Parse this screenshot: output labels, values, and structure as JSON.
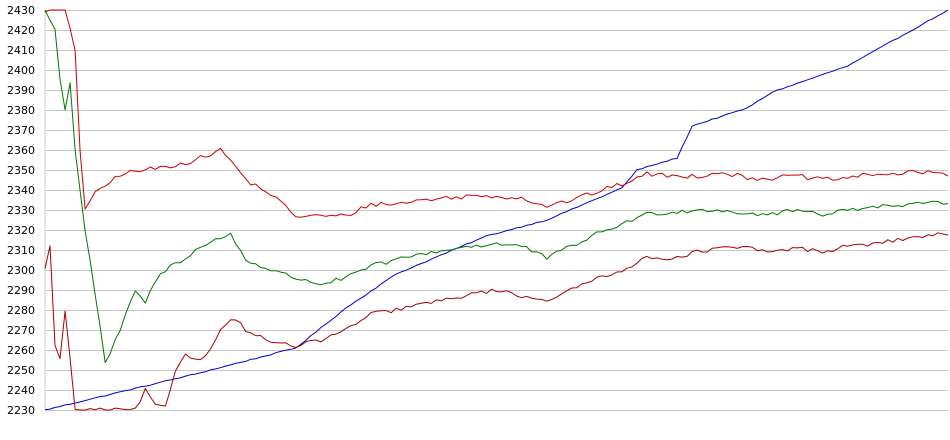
{
  "chart_data": {
    "type": "line",
    "title": "",
    "xlabel": "",
    "ylabel": "",
    "ylim": [
      2230,
      2430
    ],
    "yticks": [
      2230,
      2240,
      2250,
      2260,
      2270,
      2280,
      2290,
      2300,
      2310,
      2320,
      2330,
      2340,
      2350,
      2360,
      2370,
      2380,
      2390,
      2400,
      2410,
      2420,
      2430
    ],
    "grid": true,
    "legend": "none",
    "x_points": 181,
    "series": [
      {
        "color": "#0000cc",
        "keyframes": [
          [
            0,
            2230
          ],
          [
            10,
            2236
          ],
          [
            30,
            2248
          ],
          [
            50,
            2261
          ],
          [
            60,
            2281
          ],
          [
            70,
            2298
          ],
          [
            88,
            2317
          ],
          [
            100,
            2325
          ],
          [
            115,
            2341
          ],
          [
            118,
            2350
          ],
          [
            126,
            2356
          ],
          [
            129,
            2372
          ],
          [
            140,
            2381
          ],
          [
            145,
            2389
          ],
          [
            160,
            2402
          ],
          [
            180,
            2430
          ]
        ],
        "noise": 0.25
      },
      {
        "color": "#cc0000",
        "keyframes": [
          [
            0,
            2430
          ],
          [
            4,
            2430
          ],
          [
            6,
            2410
          ],
          [
            7,
            2360
          ],
          [
            8,
            2331
          ],
          [
            10,
            2338
          ],
          [
            15,
            2348
          ],
          [
            20,
            2350
          ],
          [
            25,
            2352
          ],
          [
            30,
            2355
          ],
          [
            35,
            2360
          ],
          [
            38,
            2352
          ],
          [
            40,
            2345
          ],
          [
            45,
            2338
          ],
          [
            50,
            2327
          ],
          [
            55,
            2327
          ],
          [
            60,
            2327
          ],
          [
            65,
            2333
          ],
          [
            70,
            2333
          ],
          [
            75,
            2335
          ],
          [
            80,
            2336
          ],
          [
            85,
            2337
          ],
          [
            90,
            2337
          ],
          [
            95,
            2336
          ],
          [
            100,
            2332
          ],
          [
            105,
            2335
          ],
          [
            110,
            2339
          ],
          [
            115,
            2343
          ],
          [
            120,
            2348
          ],
          [
            125,
            2347
          ],
          [
            130,
            2347
          ],
          [
            135,
            2349
          ],
          [
            140,
            2346
          ],
          [
            145,
            2346
          ],
          [
            150,
            2347
          ],
          [
            155,
            2345
          ],
          [
            160,
            2346
          ],
          [
            165,
            2348
          ],
          [
            170,
            2348
          ],
          [
            175,
            2349
          ],
          [
            180,
            2348
          ]
        ],
        "noise": 1.2
      },
      {
        "color": "#007700",
        "keyframes": [
          [
            0,
            2430
          ],
          [
            2,
            2420
          ],
          [
            3,
            2395
          ],
          [
            4,
            2381
          ],
          [
            5,
            2394
          ],
          [
            6,
            2360
          ],
          [
            8,
            2320
          ],
          [
            10,
            2288
          ],
          [
            12,
            2253
          ],
          [
            15,
            2270
          ],
          [
            18,
            2290
          ],
          [
            20,
            2283
          ],
          [
            22,
            2295
          ],
          [
            25,
            2302
          ],
          [
            28,
            2306
          ],
          [
            30,
            2310
          ],
          [
            34,
            2315
          ],
          [
            37,
            2318
          ],
          [
            40,
            2305
          ],
          [
            45,
            2300
          ],
          [
            50,
            2296
          ],
          [
            55,
            2293
          ],
          [
            60,
            2296
          ],
          [
            65,
            2302
          ],
          [
            70,
            2305
          ],
          [
            75,
            2308
          ],
          [
            80,
            2310
          ],
          [
            85,
            2312
          ],
          [
            90,
            2313
          ],
          [
            95,
            2312
          ],
          [
            100,
            2306
          ],
          [
            105,
            2312
          ],
          [
            110,
            2318
          ],
          [
            115,
            2323
          ],
          [
            120,
            2328
          ],
          [
            125,
            2329
          ],
          [
            130,
            2330
          ],
          [
            135,
            2330
          ],
          [
            140,
            2328
          ],
          [
            145,
            2328
          ],
          [
            150,
            2330
          ],
          [
            155,
            2328
          ],
          [
            160,
            2330
          ],
          [
            165,
            2332
          ],
          [
            170,
            2332
          ],
          [
            175,
            2333
          ],
          [
            180,
            2334
          ]
        ],
        "noise": 1.1
      },
      {
        "color": "#aa0000",
        "keyframes": [
          [
            0,
            2300
          ],
          [
            1,
            2313
          ],
          [
            2,
            2262
          ],
          [
            3,
            2255
          ],
          [
            4,
            2280
          ],
          [
            5,
            2255
          ],
          [
            6,
            2230
          ],
          [
            10,
            2230
          ],
          [
            18,
            2230
          ],
          [
            20,
            2240
          ],
          [
            22,
            2232
          ],
          [
            24,
            2231
          ],
          [
            26,
            2250
          ],
          [
            28,
            2258
          ],
          [
            30,
            2255
          ],
          [
            32,
            2257
          ],
          [
            34,
            2266
          ],
          [
            36,
            2273
          ],
          [
            38,
            2276
          ],
          [
            40,
            2270
          ],
          [
            45,
            2264
          ],
          [
            50,
            2262
          ],
          [
            55,
            2265
          ],
          [
            60,
            2270
          ],
          [
            65,
            2278
          ],
          [
            70,
            2280
          ],
          [
            75,
            2283
          ],
          [
            80,
            2285
          ],
          [
            85,
            2288
          ],
          [
            90,
            2290
          ],
          [
            95,
            2287
          ],
          [
            100,
            2285
          ],
          [
            105,
            2290
          ],
          [
            110,
            2296
          ],
          [
            115,
            2300
          ],
          [
            120,
            2306
          ],
          [
            125,
            2306
          ],
          [
            130,
            2309
          ],
          [
            135,
            2311
          ],
          [
            140,
            2311
          ],
          [
            145,
            2309
          ],
          [
            150,
            2311
          ],
          [
            155,
            2309
          ],
          [
            160,
            2312
          ],
          [
            165,
            2313
          ],
          [
            170,
            2315
          ],
          [
            175,
            2317
          ],
          [
            180,
            2318
          ]
        ],
        "noise": 1.0
      }
    ]
  }
}
